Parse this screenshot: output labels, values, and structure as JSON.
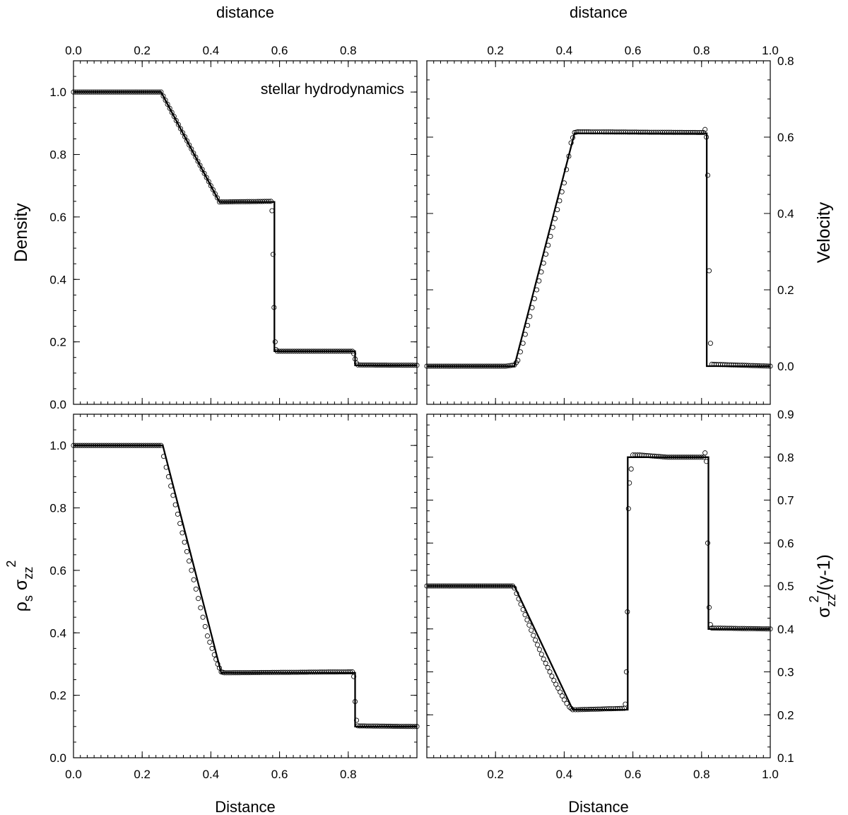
{
  "figure": {
    "top_label_left": "distance",
    "top_label_right": "distance",
    "bottom_label_left": "Distance",
    "bottom_label_right": "Distance"
  },
  "chart_data": [
    {
      "id": "density",
      "type": "line",
      "ylabel": "Density",
      "ylabel_side": "left",
      "annotation": "stellar hydrodynamics",
      "xlim": [
        0,
        1
      ],
      "ylim": [
        0,
        1.1
      ],
      "xticks": [
        0.0,
        0.2,
        0.4,
        0.6,
        0.8
      ],
      "xtick_labels": [
        "0.0",
        "0.2",
        "0.4",
        "0.6",
        "0.8"
      ],
      "xtick_labels_position": "top",
      "yticks": [
        0.0,
        0.2,
        0.4,
        0.6,
        0.8,
        1.0
      ],
      "ytick_labels": [
        "0.0",
        "0.2",
        "0.4",
        "0.6",
        "0.8",
        "1.0"
      ],
      "series": [
        {
          "style": "solid",
          "x": [
            0.0,
            0.255,
            0.425,
            0.585,
            0.585,
            0.82,
            0.82,
            1.0
          ],
          "y": [
            1.0,
            1.0,
            0.648,
            0.648,
            0.17,
            0.17,
            0.125,
            0.125
          ]
        },
        {
          "style": "open-circles",
          "x": [
            0.0,
            0.255,
            0.425,
            0.575,
            0.578,
            0.581,
            0.584,
            0.587,
            0.59,
            0.593,
            0.812,
            0.816,
            0.82,
            0.824,
            0.828,
            1.0
          ],
          "y": [
            1.0,
            1.0,
            0.648,
            0.65,
            0.62,
            0.48,
            0.31,
            0.2,
            0.175,
            0.17,
            0.17,
            0.162,
            0.145,
            0.132,
            0.126,
            0.125
          ]
        }
      ]
    },
    {
      "id": "velocity",
      "type": "line",
      "ylabel": "Velocity",
      "ylabel_side": "right",
      "xlim": [
        0,
        1
      ],
      "ylim": [
        -0.1,
        0.8
      ],
      "xticks": [
        0.2,
        0.4,
        0.6,
        0.8,
        1.0
      ],
      "xtick_labels": [
        "0.2",
        "0.4",
        "0.6",
        "0.8",
        "1.0"
      ],
      "xtick_labels_position": "top",
      "yticks": [
        0.0,
        0.2,
        0.4,
        0.6,
        0.8
      ],
      "ytick_labels": [
        "0.0",
        "0.2",
        "0.4",
        "0.6",
        "0.8"
      ],
      "series": [
        {
          "style": "solid",
          "x": [
            0.0,
            0.255,
            0.43,
            0.815,
            0.815,
            1.0
          ],
          "y": [
            0.0,
            0.0,
            0.61,
            0.61,
            0.0,
            0.0
          ]
        },
        {
          "style": "open-circles",
          "x": [
            0.0,
            0.23,
            0.255,
            0.265,
            0.28,
            0.3,
            0.32,
            0.34,
            0.36,
            0.38,
            0.4,
            0.42,
            0.43,
            0.44,
            0.806,
            0.81,
            0.814,
            0.818,
            0.822,
            0.826,
            0.83,
            1.0
          ],
          "y": [
            0.0,
            0.0,
            0.003,
            0.015,
            0.06,
            0.13,
            0.2,
            0.27,
            0.34,
            0.41,
            0.48,
            0.585,
            0.612,
            0.614,
            0.612,
            0.62,
            0.6,
            0.5,
            0.25,
            0.06,
            0.005,
            0.0
          ]
        }
      ]
    },
    {
      "id": "pressure",
      "type": "line",
      "ylabel": "ρs σzz2",
      "ylabel_side": "left",
      "xlim": [
        0,
        1
      ],
      "ylim": [
        0,
        1.1
      ],
      "xticks": [
        0.0,
        0.2,
        0.4,
        0.6,
        0.8
      ],
      "xtick_labels": [
        "0.0",
        "0.2",
        "0.4",
        "0.6",
        "0.8"
      ],
      "xtick_labels_position": "bottom",
      "yticks": [
        0.0,
        0.2,
        0.4,
        0.6,
        0.8,
        1.0
      ],
      "ytick_labels": [
        "0.0",
        "0.2",
        "0.4",
        "0.6",
        "0.8",
        "1.0"
      ],
      "series": [
        {
          "style": "solid",
          "x": [
            0.0,
            0.26,
            0.43,
            0.82,
            0.82,
            1.0
          ],
          "y": [
            1.0,
            1.0,
            0.272,
            0.272,
            0.1,
            0.1
          ]
        },
        {
          "style": "open-circles",
          "x": [
            0.0,
            0.255,
            0.27,
            0.29,
            0.31,
            0.33,
            0.35,
            0.37,
            0.39,
            0.41,
            0.42,
            0.43,
            0.44,
            0.812,
            0.816,
            0.82,
            0.824,
            0.828,
            1.0
          ],
          "y": [
            1.0,
            1.0,
            0.93,
            0.84,
            0.75,
            0.66,
            0.57,
            0.48,
            0.39,
            0.33,
            0.3,
            0.275,
            0.272,
            0.275,
            0.26,
            0.18,
            0.12,
            0.102,
            0.1
          ]
        }
      ]
    },
    {
      "id": "energy",
      "type": "line",
      "ylabel": "σzz2/(γ-1)",
      "ylabel_side": "right",
      "xlim": [
        0,
        1
      ],
      "ylim": [
        0.1,
        0.9
      ],
      "xticks": [
        0.2,
        0.4,
        0.6,
        0.8,
        1.0
      ],
      "xtick_labels": [
        "0.2",
        "0.4",
        "0.6",
        "0.8",
        "1.0"
      ],
      "xtick_labels_position": "bottom",
      "yticks": [
        0.1,
        0.2,
        0.3,
        0.4,
        0.5,
        0.6,
        0.7,
        0.8,
        0.9
      ],
      "ytick_labels": [
        "0.1",
        "0.2",
        "0.3",
        "0.4",
        "0.5",
        "0.6",
        "0.7",
        "0.8",
        "0.9"
      ],
      "series": [
        {
          "style": "solid",
          "x": [
            0.0,
            0.255,
            0.425,
            0.585,
            0.585,
            0.82,
            0.82,
            1.0
          ],
          "y": [
            0.5,
            0.5,
            0.212,
            0.212,
            0.8,
            0.8,
            0.4,
            0.4
          ]
        },
        {
          "style": "open-circles",
          "x": [
            0.0,
            0.25,
            0.255,
            0.28,
            0.31,
            0.34,
            0.37,
            0.4,
            0.415,
            0.425,
            0.44,
            0.575,
            0.578,
            0.581,
            0.584,
            0.587,
            0.59,
            0.6,
            0.62,
            0.7,
            0.78,
            0.806,
            0.81,
            0.814,
            0.818,
            0.822,
            0.826,
            0.83,
            1.0
          ],
          "y": [
            0.5,
            0.5,
            0.495,
            0.445,
            0.385,
            0.33,
            0.28,
            0.235,
            0.218,
            0.212,
            0.212,
            0.215,
            0.225,
            0.3,
            0.44,
            0.68,
            0.74,
            0.805,
            0.805,
            0.8,
            0.8,
            0.8,
            0.81,
            0.79,
            0.6,
            0.45,
            0.41,
            0.402,
            0.4
          ]
        }
      ]
    }
  ]
}
